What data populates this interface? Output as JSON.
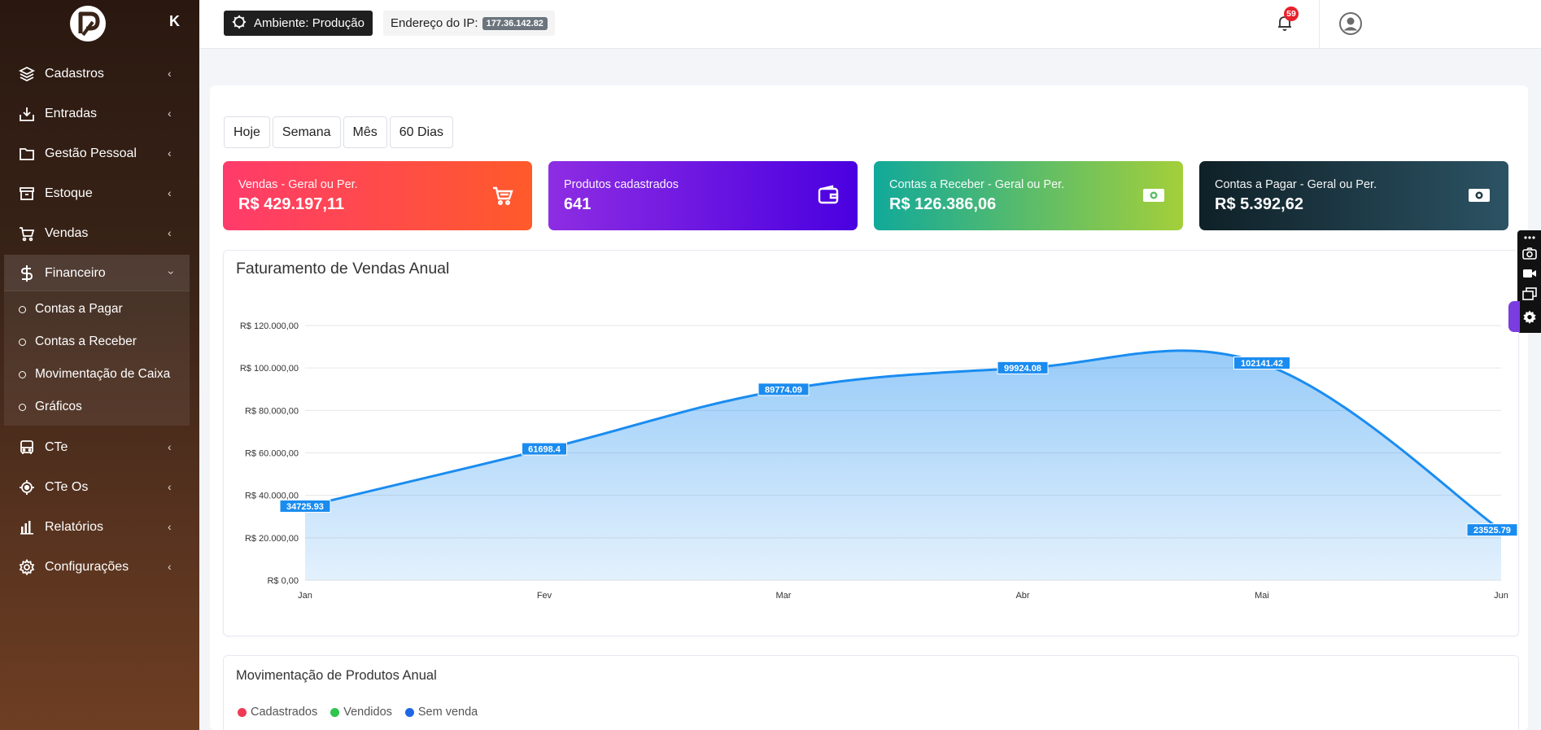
{
  "sidebar": {
    "collapse_label": "K",
    "items": [
      {
        "label": "Cadastros",
        "icon": "layers-icon"
      },
      {
        "label": "Entradas",
        "icon": "download-icon"
      },
      {
        "label": "Gestão Pessoal",
        "icon": "folder-icon"
      },
      {
        "label": "Estoque",
        "icon": "archive-icon"
      },
      {
        "label": "Vendas",
        "icon": "cart-icon"
      },
      {
        "label": "Financeiro",
        "icon": "dollar-icon"
      },
      {
        "label": "CTe",
        "icon": "bus-icon"
      },
      {
        "label": "CTe Os",
        "icon": "crosshair-icon"
      },
      {
        "label": "Relatórios",
        "icon": "bar-chart-icon"
      },
      {
        "label": "Configurações",
        "icon": "gear-icon"
      }
    ],
    "financeiro_submenu": [
      "Contas a Pagar",
      "Contas a Receber",
      "Movimentação de Caixa",
      "Gráficos"
    ]
  },
  "topbar": {
    "environment": "Ambiente: Produção",
    "ip_label": "Endereço do IP:",
    "ip_value": "177.36.142.82",
    "notification_count": "59"
  },
  "filters": [
    "Hoje",
    "Semana",
    "Mês",
    "60 Dias"
  ],
  "kpis": [
    {
      "label": "Vendas - Geral ou Per.",
      "value": "R$ 429.197,11",
      "icon": "cart-icon",
      "gradient": [
        "#ff3b6b",
        "#ff5a2a"
      ]
    },
    {
      "label": "Produtos cadastrados",
      "value": "641",
      "icon": "wallet-icon",
      "gradient": [
        "#8e2de2",
        "#4a00e0"
      ]
    },
    {
      "label": "Contas a Receber - Geral ou Per.",
      "value": "R$ 126.386,06",
      "icon": "money-icon",
      "gradient": [
        "#11a99a",
        "#a4cf3a"
      ]
    },
    {
      "label": "Contas a Pagar - Geral ou Per.",
      "value": "R$ 5.392,62",
      "icon": "money-icon",
      "gradient": [
        "#0f2027",
        "#2c5364"
      ]
    }
  ],
  "chart_data": {
    "type": "area",
    "title": "Faturamento de Vendas Anual",
    "categories": [
      "Jan",
      "Fev",
      "Mar",
      "Abr",
      "Mai",
      "Jun"
    ],
    "values": [
      34725.93,
      61698.4,
      89774.09,
      99924.08,
      102141.42,
      23525.79
    ],
    "data_labels": [
      "34725.93",
      "61698.4",
      "89774.09",
      "99924.08",
      "102141.42",
      "23525.79"
    ],
    "ylim": [
      0,
      120000
    ],
    "y_ticks": [
      "R$ 0,00",
      "R$ 20.000,00",
      "R$ 40.000,00",
      "R$ 60.000,00",
      "R$ 80.000,00",
      "R$ 100.000,00",
      "R$ 120.000,00"
    ],
    "grid": true,
    "color": "#1a8cf0"
  },
  "movimentacao": {
    "title": "Movimentação de Produtos Anual",
    "legend": [
      {
        "label": "Cadastrados",
        "color": "#ef3b54"
      },
      {
        "label": "Vendidos",
        "color": "#2ec44d"
      },
      {
        "label": "Sem venda",
        "color": "#1e66e6"
      }
    ]
  }
}
